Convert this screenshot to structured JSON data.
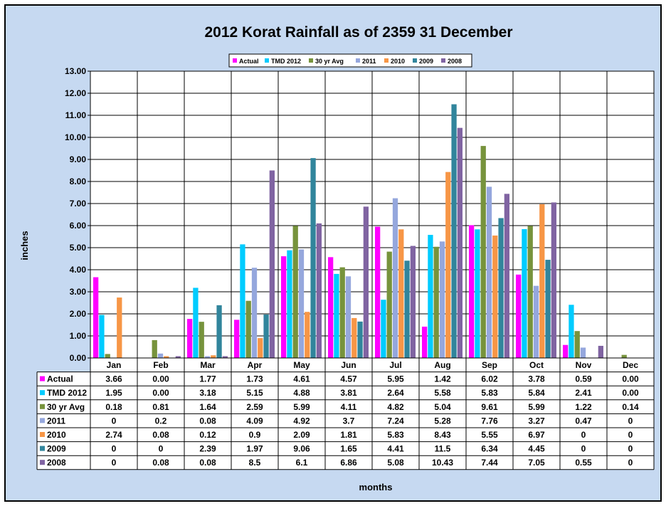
{
  "chart_data": {
    "type": "bar",
    "title": "2012 Korat Rainfall as of 2359 31 December",
    "xlabel": "months",
    "ylabel": "inches",
    "ylim": [
      0,
      13
    ],
    "ytick_step": 1,
    "yticks": [
      "0.00",
      "1.00",
      "2.00",
      "3.00",
      "4.00",
      "5.00",
      "6.00",
      "7.00",
      "8.00",
      "9.00",
      "10.00",
      "11.00",
      "12.00",
      "13.00"
    ],
    "grid": true,
    "legend": "top",
    "categories": [
      "Jan",
      "Feb",
      "Mar",
      "Apr",
      "May",
      "Jun",
      "Jul",
      "Aug",
      "Sep",
      "Oct",
      "Nov",
      "Dec"
    ],
    "series": [
      {
        "name": "Actual",
        "color": "#ff00ff",
        "values": [
          3.66,
          0,
          1.77,
          1.73,
          4.61,
          4.57,
          5.95,
          1.42,
          6.02,
          3.78,
          0.59,
          0
        ],
        "labels": [
          "3.66",
          "0.00",
          "1.77",
          "1.73",
          "4.61",
          "4.57",
          "5.95",
          "1.42",
          "6.02",
          "3.78",
          "0.59",
          "0.00"
        ]
      },
      {
        "name": "TMD 2012",
        "color": "#00ccff",
        "values": [
          1.95,
          0,
          3.18,
          5.15,
          4.88,
          3.81,
          2.64,
          5.58,
          5.83,
          5.84,
          2.41,
          0
        ],
        "labels": [
          "1.95",
          "0.00",
          "3.18",
          "5.15",
          "4.88",
          "3.81",
          "2.64",
          "5.58",
          "5.83",
          "5.84",
          "2.41",
          "0.00"
        ]
      },
      {
        "name": "30 yr Avg",
        "color": "#77933c",
        "values": [
          0.18,
          0.81,
          1.64,
          2.59,
          5.99,
          4.11,
          4.82,
          5.04,
          9.61,
          5.99,
          1.22,
          0.14
        ],
        "labels": [
          "0.18",
          "0.81",
          "1.64",
          "2.59",
          "5.99",
          "4.11",
          "4.82",
          "5.04",
          "9.61",
          "5.99",
          "1.22",
          "0.14"
        ]
      },
      {
        "name": "2011",
        "color": "#95a7dd",
        "values": [
          0,
          0.2,
          0.08,
          4.09,
          4.92,
          3.7,
          7.24,
          5.28,
          7.76,
          3.27,
          0.47,
          0
        ],
        "labels": [
          "0",
          "0.2",
          "0.08",
          "4.09",
          "4.92",
          "3.7",
          "7.24",
          "5.28",
          "7.76",
          "3.27",
          "0.47",
          "0"
        ]
      },
      {
        "name": "2010",
        "color": "#f79646",
        "values": [
          2.74,
          0.08,
          0.12,
          0.9,
          2.09,
          1.81,
          5.83,
          8.43,
          5.55,
          6.97,
          0,
          0
        ],
        "labels": [
          "2.74",
          "0.08",
          "0.12",
          "0.9",
          "2.09",
          "1.81",
          "5.83",
          "8.43",
          "5.55",
          "6.97",
          "0",
          "0"
        ]
      },
      {
        "name": "2009",
        "color": "#31859c",
        "values": [
          0,
          0,
          2.39,
          1.97,
          9.06,
          1.65,
          4.41,
          11.5,
          6.34,
          4.45,
          0,
          0
        ],
        "labels": [
          "0",
          "0",
          "2.39",
          "1.97",
          "9.06",
          "1.65",
          "4.41",
          "11.5",
          "6.34",
          "4.45",
          "0",
          "0"
        ]
      },
      {
        "name": "2008",
        "color": "#8064a2",
        "values": [
          0,
          0.08,
          0.08,
          8.5,
          6.1,
          6.86,
          5.08,
          10.43,
          7.44,
          7.05,
          0.55,
          0
        ],
        "labels": [
          "0",
          "0.08",
          "0.08",
          "8.5",
          "6.1",
          "6.86",
          "5.08",
          "10.43",
          "7.44",
          "7.05",
          "0.55",
          "0"
        ]
      }
    ]
  }
}
